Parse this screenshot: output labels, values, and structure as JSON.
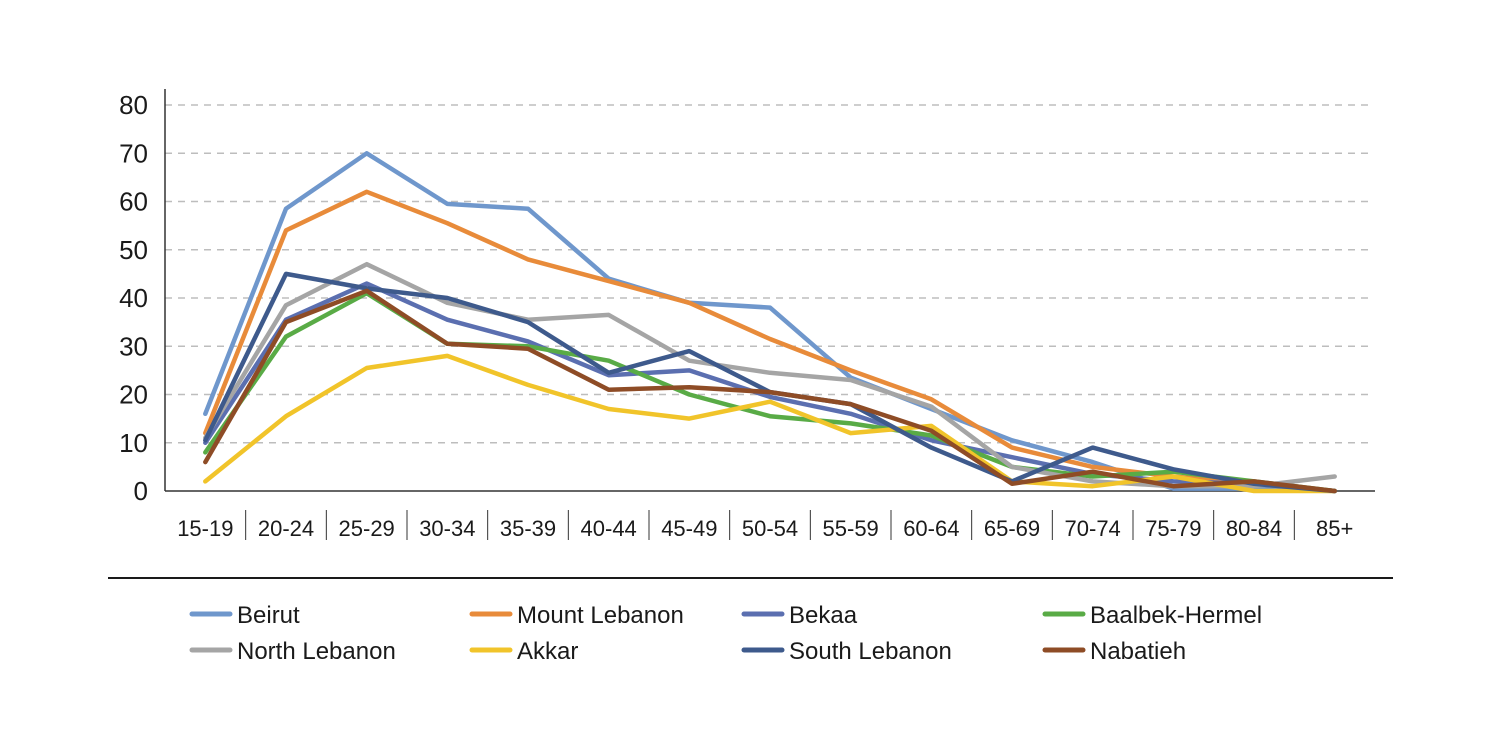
{
  "chart_data": {
    "type": "line",
    "title": "",
    "xlabel": "",
    "ylabel": "",
    "ylim": [
      0,
      80
    ],
    "yticks": [
      0,
      10,
      20,
      30,
      40,
      50,
      60,
      70,
      80
    ],
    "grid": "horizontal dashed",
    "legend_position": "bottom",
    "categories": [
      "15-19",
      "20-24",
      "25-29",
      "30-34",
      "35-39",
      "40-44",
      "45-49",
      "50-54",
      "55-59",
      "60-64",
      "65-69",
      "70-74",
      "75-79",
      "80-84",
      "85+"
    ],
    "series": [
      {
        "name": "Beirut",
        "color": "#6F97CC",
        "values": [
          16,
          58.5,
          70,
          59.5,
          58.5,
          44,
          39,
          38,
          23.5,
          17,
          10.5,
          6,
          0.5,
          0.5,
          0
        ]
      },
      {
        "name": "Mount Lebanon",
        "color": "#E88B3A",
        "values": [
          12,
          54,
          62,
          55.5,
          48,
          43.5,
          39,
          31.5,
          25,
          19,
          9,
          5,
          3,
          1.5,
          0
        ]
      },
      {
        "name": "Bekaa",
        "color": "#5B6FB0",
        "values": [
          10,
          35.5,
          43,
          35.5,
          31,
          24,
          25,
          19.5,
          16,
          10.5,
          7,
          3.5,
          2,
          1.5,
          0
        ]
      },
      {
        "name": "Baalbek-Hermel",
        "color": "#59AB46",
        "values": [
          8,
          32,
          41,
          30.5,
          30,
          27,
          20,
          15.5,
          14,
          11.5,
          5,
          3,
          4,
          2,
          0
        ]
      },
      {
        "name": "North Lebanon",
        "color": "#A5A5A5",
        "values": [
          11,
          38.5,
          47,
          39,
          35.5,
          36.5,
          27,
          24.5,
          23,
          17.5,
          5,
          2,
          1,
          1,
          3
        ]
      },
      {
        "name": "Akkar",
        "color": "#F1C42A",
        "values": [
          2,
          15.5,
          25.5,
          28,
          22,
          17,
          15,
          18.5,
          12,
          13.5,
          2,
          1,
          3,
          0,
          0
        ]
      },
      {
        "name": "South Lebanon",
        "color": "#3E5A8C",
        "values": [
          10.5,
          45,
          42,
          40,
          35,
          24.5,
          29,
          20.5,
          18,
          9,
          2,
          9,
          4.5,
          1.5,
          0
        ]
      },
      {
        "name": "Nabatieh",
        "color": "#8E4C26",
        "values": [
          6,
          35,
          41.5,
          30.5,
          29.5,
          21,
          21.5,
          20.5,
          18,
          12.5,
          1.5,
          4,
          1,
          2,
          0
        ]
      }
    ]
  }
}
